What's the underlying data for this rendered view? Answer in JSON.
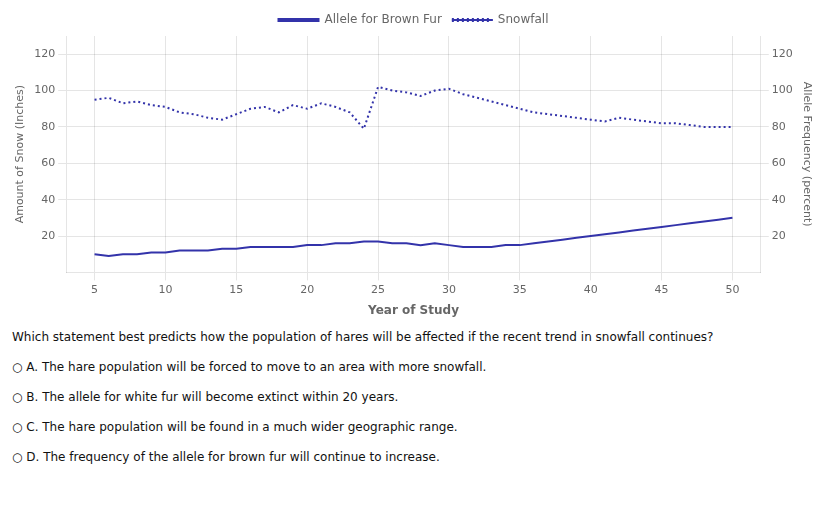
{
  "chart_data": {
    "type": "line",
    "xlabel": "Year of Study",
    "ylabel": "Amount of Snow (Inches)",
    "y2label": "Allele Frequency (percent)",
    "x": [
      5,
      6,
      7,
      8,
      9,
      10,
      11,
      12,
      13,
      14,
      15,
      16,
      17,
      18,
      19,
      20,
      21,
      22,
      23,
      24,
      25,
      26,
      27,
      28,
      29,
      30,
      31,
      32,
      33,
      34,
      35,
      36,
      37,
      38,
      39,
      40,
      41,
      42,
      43,
      44,
      45,
      46,
      47,
      48,
      49,
      50
    ],
    "series": [
      {
        "name": "Allele for Brown Fur",
        "color": "#3333aa",
        "line_style": "solid",
        "values": [
          10,
          9,
          10,
          10,
          11,
          11,
          12,
          12,
          12,
          13,
          13,
          14,
          14,
          14,
          14,
          15,
          15,
          16,
          16,
          17,
          17,
          16,
          16,
          15,
          16,
          15,
          14,
          14,
          14,
          15,
          15,
          16,
          17,
          18,
          19,
          20,
          21,
          22,
          23,
          24,
          25,
          26,
          27,
          28,
          29,
          30
        ]
      },
      {
        "name": "Snowfall",
        "color": "#3333aa",
        "line_style": "dotted",
        "values": [
          95,
          96,
          93,
          94,
          92,
          91,
          88,
          87,
          85,
          84,
          87,
          90,
          91,
          88,
          92,
          90,
          93,
          91,
          88,
          79,
          102,
          100,
          99,
          97,
          100,
          101,
          98,
          96,
          94,
          92,
          90,
          88,
          87,
          86,
          85,
          84,
          83,
          85,
          84,
          83,
          82,
          82,
          81,
          80,
          80,
          80
        ]
      }
    ],
    "xlim": [
      3,
      52
    ],
    "xticks": [
      5,
      10,
      15,
      20,
      25,
      30,
      35,
      40,
      45,
      50
    ],
    "ylim": [
      0,
      130
    ],
    "yticks": [
      20,
      40,
      60,
      80,
      100,
      120
    ],
    "y2lim": [
      0,
      130
    ],
    "y2ticks": [
      20,
      40,
      60,
      80,
      100,
      120
    ],
    "grid": true,
    "legend": "top",
    "annotations": [
      "Which statement best predicts how the population of hares will be affected if the recent trend in snowfall continues?",
      "○ A. The hare population will be forced to move to an area with more snowfall.",
      "○ B. The allele for white fur will become extinct within 20 years.",
      "○ C. The hare population will be found in a much wider geographic range.",
      "○ D. The frequency of the allele for brown fur will continue to increase."
    ]
  }
}
